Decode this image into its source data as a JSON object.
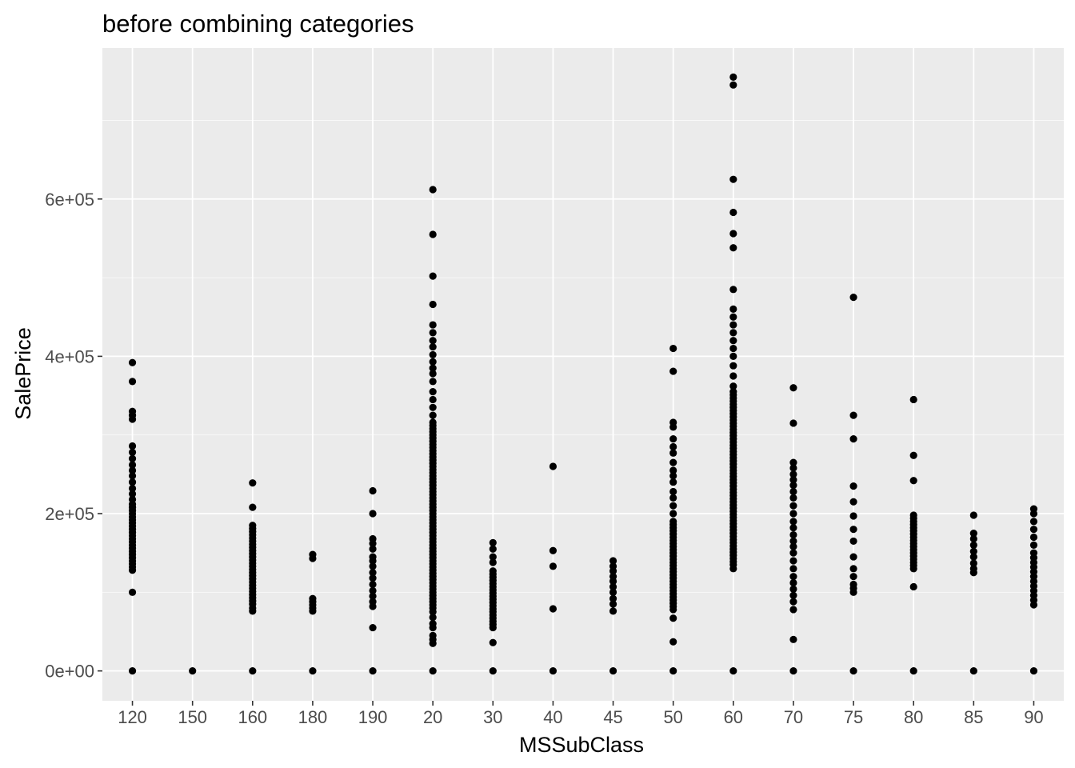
{
  "chart_data": {
    "type": "scatter",
    "title": "before combining categories",
    "xlabel": "MSSubClass",
    "ylabel": "SalePrice",
    "categories": [
      "120",
      "150",
      "160",
      "180",
      "190",
      "20",
      "30",
      "40",
      "45",
      "50",
      "60",
      "70",
      "75",
      "80",
      "85",
      "90"
    ],
    "y_ticks": [
      0,
      200000,
      400000,
      600000
    ],
    "y_tick_labels": [
      "0e+00",
      "2e+05",
      "4e+05",
      "6e+05"
    ],
    "ylim": [
      -38000,
      792000
    ],
    "grid": true,
    "colors": {
      "panel": "#ebebeb",
      "grid_major": "#ffffff",
      "point": "#000000",
      "tick_label": "#4d4d4d"
    },
    "points": {
      "120": {
        "values": [
          0,
          100000,
          392000,
          368000,
          330000,
          325000,
          320000,
          286000,
          278000,
          270000,
          262000,
          255000,
          248000,
          240000,
          232000,
          225000,
          218000
        ],
        "range": [
          128000,
          212000
        ]
      },
      "150": {
        "values": [
          0
        ]
      },
      "160": {
        "values": [
          0,
          76000,
          80000,
          239000,
          208000
        ],
        "range": [
          85000,
          185000
        ]
      },
      "180": {
        "values": [
          0,
          148000,
          143000,
          92000,
          88000,
          84000,
          80000,
          76000
        ]
      },
      "190": {
        "values": [
          0,
          55000,
          229000,
          200000,
          168000,
          162000,
          155000,
          145000,
          140000,
          133000,
          125000,
          118000,
          110000,
          102000,
          95000,
          88000,
          82000
        ]
      },
      "20": {
        "values": [
          0,
          612000,
          555000,
          502000,
          466000,
          440000,
          430000,
          420000,
          412000,
          402000,
          393000,
          385000,
          378000,
          368000,
          355000,
          345000,
          335000,
          325000,
          35000,
          40000,
          45000,
          55000,
          60000,
          68000,
          75000
        ],
        "range": [
          80000,
          318000
        ]
      },
      "30": {
        "values": [
          0,
          36000,
          163000,
          155000,
          145000,
          138000
        ],
        "range": [
          55000,
          130000
        ]
      },
      "40": {
        "values": [
          0,
          79000,
          133000,
          153000,
          260000
        ]
      },
      "45": {
        "values": [
          0,
          76000,
          85000,
          92000,
          100000,
          107000,
          114000,
          120000,
          127000,
          133000,
          140000
        ]
      },
      "50": {
        "values": [
          0,
          37000,
          67000,
          410000,
          381000,
          316000,
          310000,
          295000,
          285000,
          277000,
          265000,
          255000,
          248000,
          240000,
          228000,
          220000,
          210000,
          200000
        ],
        "range": [
          78000,
          190000
        ]
      },
      "60": {
        "values": [
          0,
          755000,
          745000,
          625000,
          583000,
          556000,
          538000,
          485000,
          460000,
          450000,
          440000,
          430000,
          420000,
          410000,
          400000,
          388000,
          375000,
          362000,
          130000
        ],
        "range": [
          135000,
          355000
        ]
      },
      "70": {
        "values": [
          0,
          40000,
          78000,
          88000,
          96000,
          360000,
          315000,
          265000,
          258000,
          250000,
          243000,
          236000,
          228000,
          220000,
          210000,
          200000,
          190000,
          182000,
          173000,
          165000,
          158000,
          150000,
          140000,
          130000,
          120000,
          112000,
          104000
        ]
      },
      "75": {
        "values": [
          0,
          100000,
          105000,
          110000,
          120000,
          130000,
          145000,
          165000,
          180000,
          197000,
          215000,
          235000,
          295000,
          325000,
          475000
        ]
      },
      "80": {
        "values": [
          0,
          107000,
          242000,
          274000,
          345000
        ],
        "range": [
          130000,
          198000
        ]
      },
      "85": {
        "values": [
          0,
          125000,
          130000,
          137000,
          145000,
          152000,
          160000,
          168000,
          175000,
          198000
        ]
      },
      "90": {
        "values": [
          0,
          84000,
          90000,
          96000,
          102000,
          108000,
          114000,
          120000,
          126000,
          132000,
          138000,
          144000,
          150000,
          160000,
          170000,
          180000,
          190000,
          200000,
          206000
        ]
      }
    }
  }
}
